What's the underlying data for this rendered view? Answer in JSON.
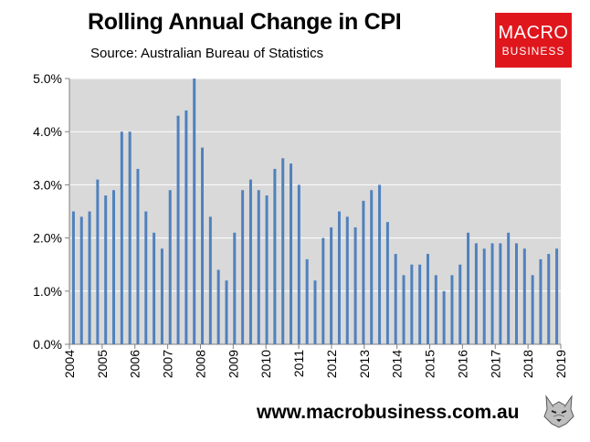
{
  "header": {
    "title": "Rolling Annual Change in CPI",
    "subtitle": "Source: Australian Bureau of Statistics"
  },
  "logo": {
    "line1": "MACRO",
    "line2": "BUSINESS"
  },
  "footer": {
    "url": "www.macrobusiness.com.au"
  },
  "icons": {
    "mascot": "wolf-icon"
  },
  "colors": {
    "bar": "#4f81bd",
    "logo_bg": "#e0161d",
    "plot_bg": "#d9d9d9"
  },
  "chart_data": {
    "type": "bar",
    "title": "Rolling Annual Change in CPI",
    "ylim": [
      0,
      5
    ],
    "y_ticks": [
      "0.0%",
      "1.0%",
      "2.0%",
      "3.0%",
      "4.0%",
      "5.0%"
    ],
    "y_tick_values": [
      0,
      1,
      2,
      3,
      4,
      5
    ],
    "x_tick_labels": [
      "2004",
      "2005",
      "2006",
      "2007",
      "2008",
      "2009",
      "2010",
      "2011",
      "2012",
      "2013",
      "2014",
      "2015",
      "2016",
      "2017",
      "2018",
      "2019"
    ],
    "grid": "horizontal",
    "values": [
      2.5,
      2.4,
      2.5,
      3.1,
      2.8,
      2.9,
      4.0,
      4.0,
      3.3,
      2.5,
      2.1,
      1.8,
      2.9,
      4.3,
      4.4,
      5.0,
      3.7,
      2.4,
      1.4,
      1.2,
      2.1,
      2.9,
      3.1,
      2.9,
      2.8,
      3.3,
      3.5,
      3.4,
      3.0,
      1.6,
      1.2,
      2.0,
      2.2,
      2.5,
      2.4,
      2.2,
      2.7,
      2.9,
      3.0,
      2.3,
      1.7,
      1.3,
      1.5,
      1.5,
      1.7,
      1.3,
      1.0,
      1.3,
      1.5,
      2.1,
      1.9,
      1.8,
      1.9,
      1.9,
      2.1,
      1.9,
      1.8,
      1.3,
      1.6,
      1.7,
      1.8
    ]
  }
}
